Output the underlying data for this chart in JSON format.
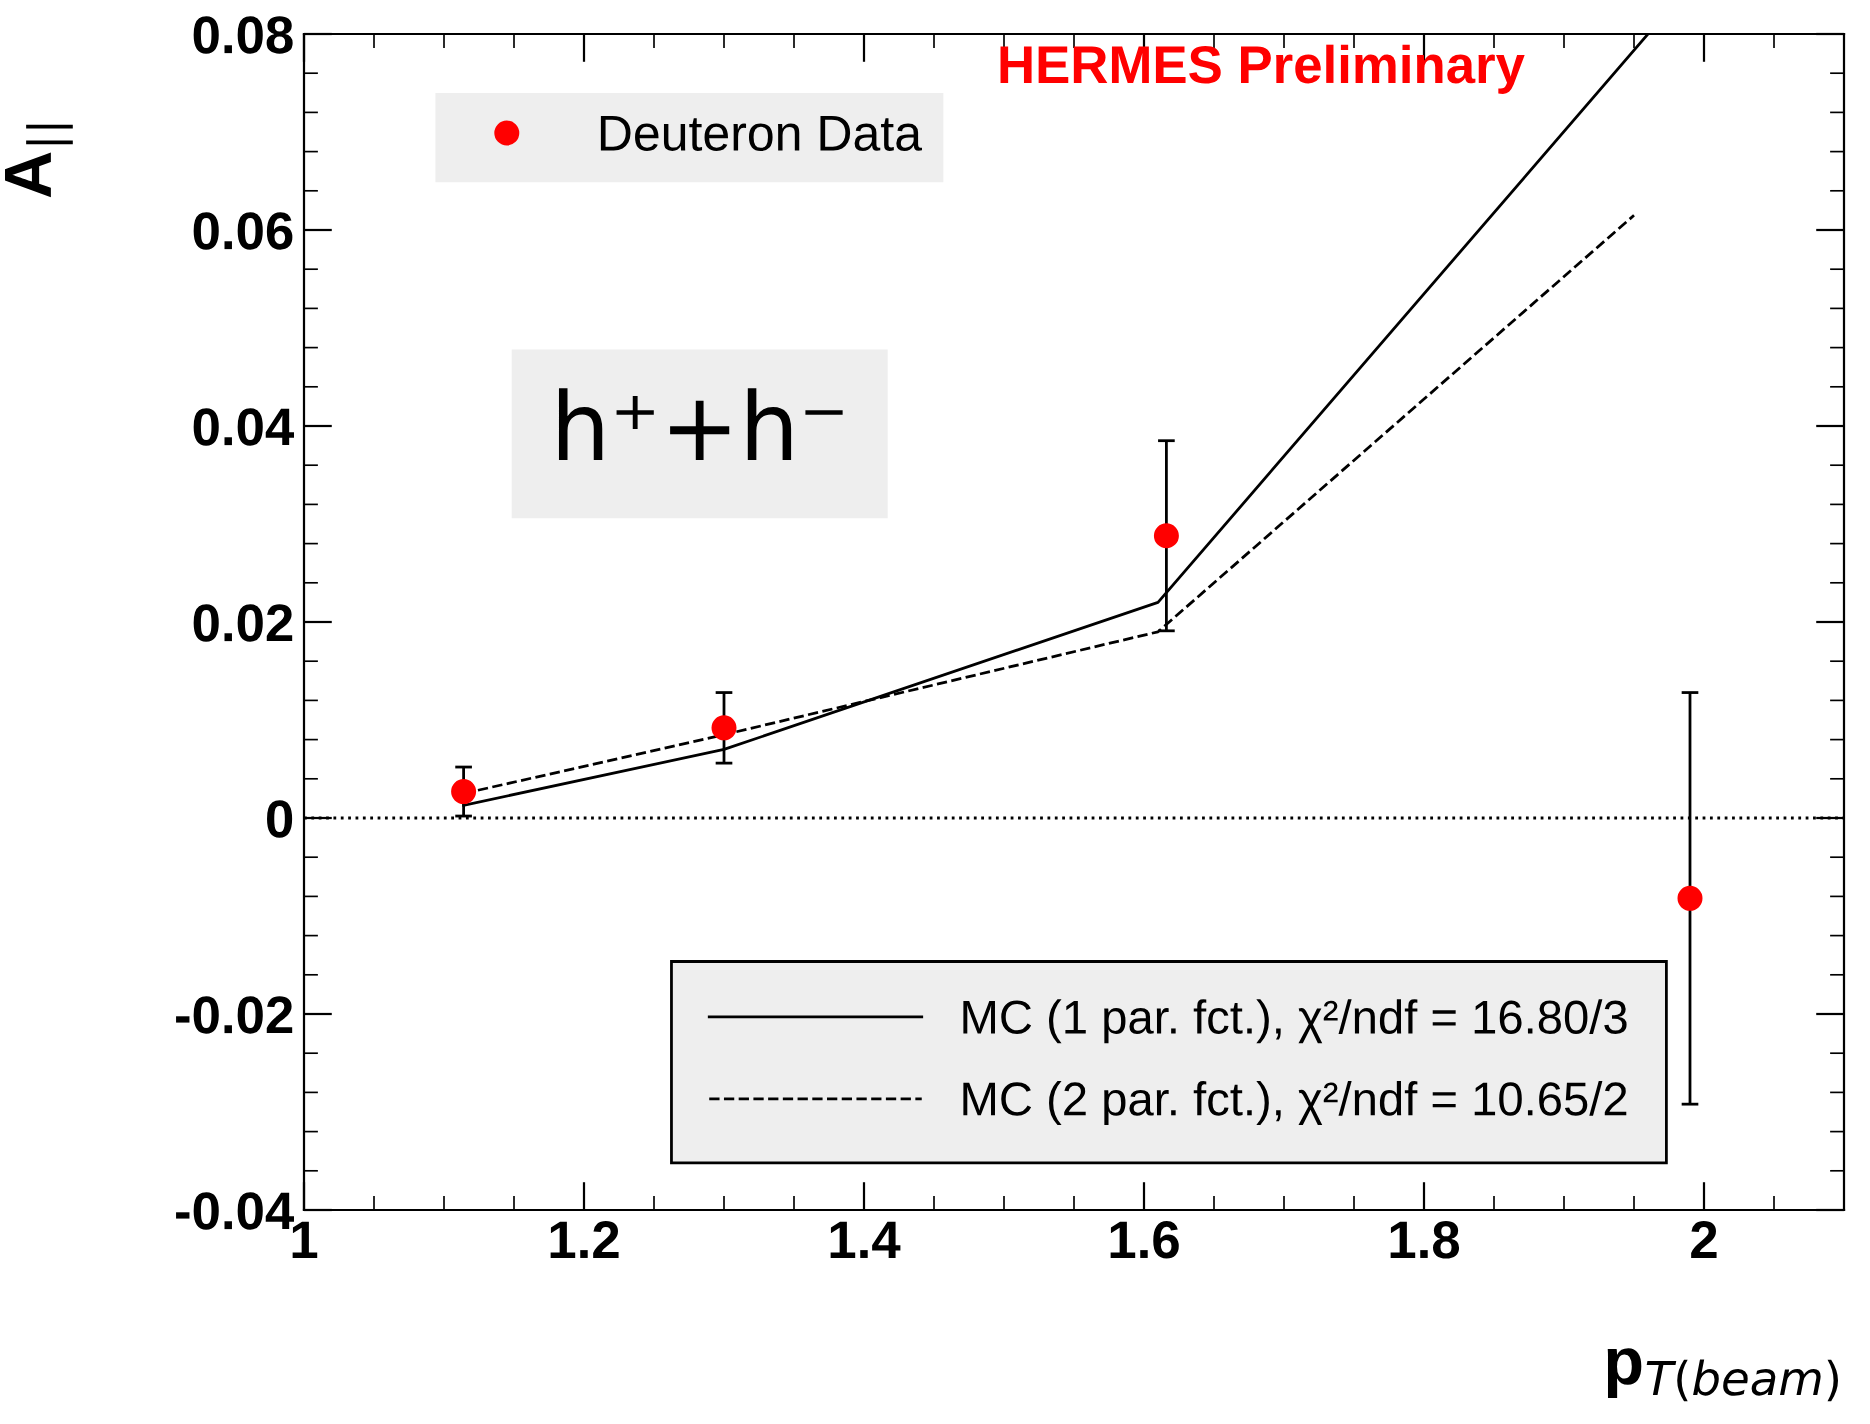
{
  "chart_data": {
    "type": "scatter",
    "xlabel": "p$_{T(beam)}$",
    "ylabel": "A$_{||}$",
    "xlim": [
      1,
      2.1
    ],
    "ylim": [
      -0.04,
      0.08
    ],
    "xticks": [
      1,
      1.2,
      1.4,
      1.6,
      1.8,
      2
    ],
    "yticks": [
      -0.04,
      -0.02,
      0,
      0.02,
      0.04,
      0.06,
      0.08
    ],
    "grid": false,
    "legend": "top left",
    "series": [
      {
        "name": "Deuteron Data",
        "color": "#ff0000",
        "marker": "circle",
        "x": [
          1.114,
          1.3,
          1.616,
          1.99
        ],
        "values": [
          0.0027,
          0.0092,
          0.0288,
          -0.0082
        ],
        "errors": [
          0.0025,
          0.0036,
          0.0097,
          0.021
        ]
      },
      {
        "name": "MC (1 par. fct.), χ²/ndf = 16.80/3",
        "type": "line",
        "color": "#000000",
        "line_style": "solid",
        "x": [
          1.114,
          1.3,
          1.61,
          1.96
        ],
        "values": [
          0.0013,
          0.007,
          0.022,
          0.08
        ]
      },
      {
        "name": "MC (2 par. fct.), χ²/ndf = 10.65/2",
        "type": "line",
        "color": "#000000",
        "line_style": "dashed",
        "x": [
          1.114,
          1.3,
          1.61,
          1.95
        ],
        "values": [
          0.0025,
          0.0085,
          0.019,
          0.0615
        ]
      }
    ],
    "ref_lines": [
      {
        "axis": "y",
        "value": 0,
        "label": null,
        "line_style": "dotted",
        "color": "#000000"
      }
    ],
    "annotations": [
      "HERMES Preliminary",
      "h⁺+h⁻"
    ]
  }
}
